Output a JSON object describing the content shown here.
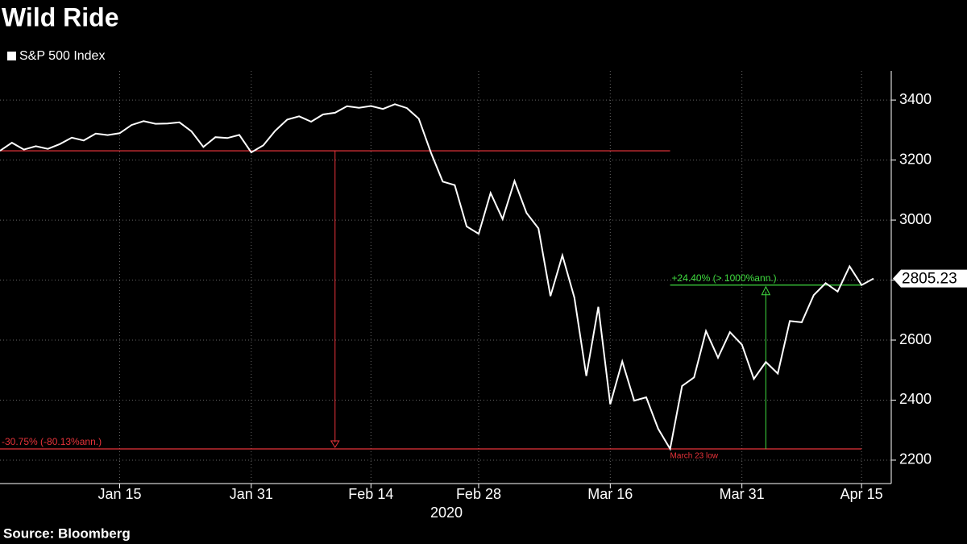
{
  "chart_data": {
    "type": "line",
    "title": "Wild Ride",
    "source": "Source: Bloomberg",
    "year_label": "2020",
    "x": [
      "Dec 31",
      "Jan 2",
      "Jan 3",
      "Jan 6",
      "Jan 7",
      "Jan 8",
      "Jan 9",
      "Jan 10",
      "Jan 13",
      "Jan 14",
      "Jan 15",
      "Jan 16",
      "Jan 17",
      "Jan 21",
      "Jan 22",
      "Jan 23",
      "Jan 24",
      "Jan 27",
      "Jan 28",
      "Jan 29",
      "Jan 30",
      "Jan 31",
      "Feb 3",
      "Feb 4",
      "Feb 5",
      "Feb 6",
      "Feb 7",
      "Feb 10",
      "Feb 11",
      "Feb 12",
      "Feb 13",
      "Feb 14",
      "Feb 18",
      "Feb 19",
      "Feb 20",
      "Feb 21",
      "Feb 24",
      "Feb 25",
      "Feb 26",
      "Feb 27",
      "Feb 28",
      "Mar 2",
      "Mar 3",
      "Mar 4",
      "Mar 5",
      "Mar 6",
      "Mar 9",
      "Mar 10",
      "Mar 11",
      "Mar 12",
      "Mar 13",
      "Mar 16",
      "Mar 17",
      "Mar 18",
      "Mar 19",
      "Mar 20",
      "Mar 23",
      "Mar 24",
      "Mar 25",
      "Mar 26",
      "Mar 27",
      "Mar 30",
      "Mar 31",
      "Apr 1",
      "Apr 2",
      "Apr 3",
      "Apr 6",
      "Apr 7",
      "Apr 8",
      "Apr 9",
      "Apr 13",
      "Apr 14",
      "Apr 15",
      "Apr 16"
    ],
    "series": [
      {
        "name": "S&P 500 Index",
        "color": "#ffffff",
        "values": [
          3230.78,
          3257.85,
          3234.85,
          3246.28,
          3237.18,
          3253.05,
          3274.7,
          3265.35,
          3288.13,
          3283.15,
          3289.29,
          3316.81,
          3329.62,
          3320.79,
          3321.75,
          3325.54,
          3295.47,
          3243.63,
          3276.24,
          3273.4,
          3283.66,
          3225.52,
          3248.92,
          3297.59,
          3334.69,
          3345.78,
          3327.71,
          3352.09,
          3357.75,
          3379.45,
          3373.94,
          3380.16,
          3370.29,
          3386.15,
          3373.23,
          3337.75,
          3225.89,
          3128.21,
          3116.39,
          2978.76,
          2954.22,
          3090.23,
          3003.37,
          3130.12,
          3023.94,
          2972.37,
          2746.56,
          2882.23,
          2741.38,
          2480.64,
          2711.02,
          2386.13,
          2529.19,
          2398.1,
          2409.39,
          2304.92,
          2237.4,
          2447.33,
          2475.56,
          2630.07,
          2541.47,
          2626.65,
          2584.59,
          2470.5,
          2526.9,
          2488.65,
          2663.68,
          2659.41,
          2749.98,
          2789.82,
          2761.63,
          2846.06,
          2783.36,
          2805.23
        ]
      }
    ],
    "xticks": [
      {
        "value": "Jan 15",
        "label": "Jan 15"
      },
      {
        "value": "Jan 31",
        "label": "Jan 31"
      },
      {
        "value": "Feb 14",
        "label": "Feb 14"
      },
      {
        "value": "Feb 28",
        "label": "Feb 28"
      },
      {
        "value": "Mar 16",
        "label": "Mar 16"
      },
      {
        "value": "Mar 31",
        "label": "Mar 31"
      },
      {
        "value": "Apr 15",
        "label": "Apr 15"
      }
    ],
    "ylim": [
      2122,
      3497
    ],
    "yticks": [
      2200,
      2400,
      2600,
      2800,
      3000,
      3200,
      3400
    ],
    "grid": true,
    "annotations": [
      {
        "text": "-30.75% (-80.13%ann.)",
        "color": "#e8333a",
        "from": 3230.78,
        "to": 2237.4
      },
      {
        "text": "+24.40% (> 1000%ann.)",
        "color": "#3fdc3f",
        "from": 2237.4,
        "to": 2783.36
      },
      {
        "text": "March 23 low",
        "color": "#e8333a"
      }
    ]
  }
}
